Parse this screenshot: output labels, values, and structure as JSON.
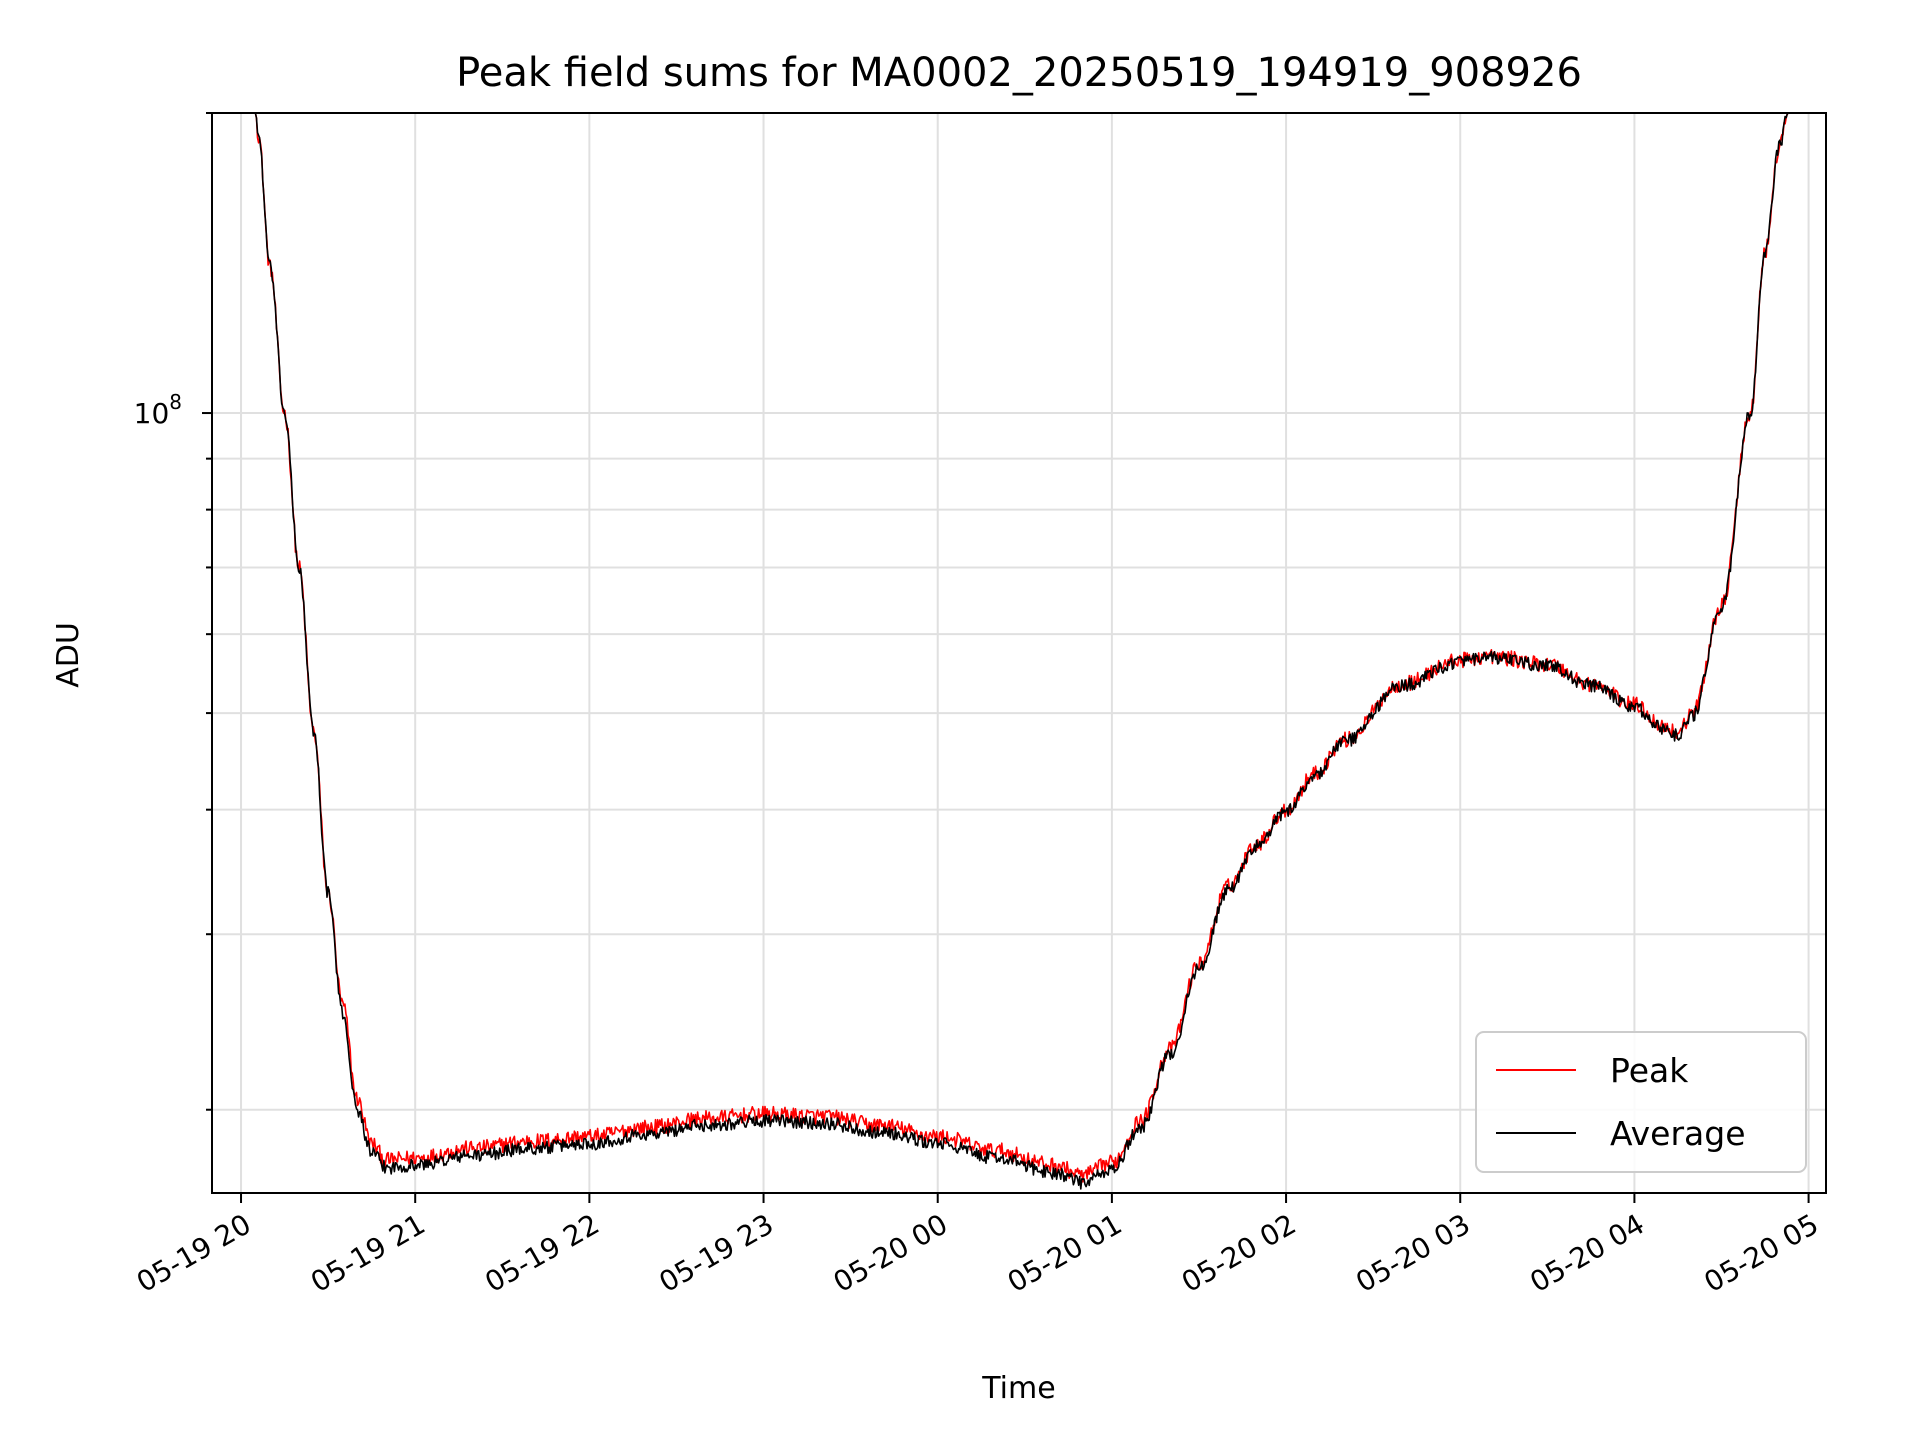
{
  "chart_data": {
    "type": "line",
    "title": "Peak field sums for MA0002_20250519_194919_908926",
    "xlabel": "Time",
    "ylabel": "ADU",
    "yscale": "log",
    "ylim": [
      16500000,
      200000000
    ],
    "xlim": [
      "2025-05-19 19:50",
      "2025-05-20 05:06"
    ],
    "xticks": [
      {
        "t": "2025-05-19 20:00",
        "label": "05-19 20"
      },
      {
        "t": "2025-05-19 21:00",
        "label": "05-19 21"
      },
      {
        "t": "2025-05-19 22:00",
        "label": "05-19 22"
      },
      {
        "t": "2025-05-19 23:00",
        "label": "05-19 23"
      },
      {
        "t": "2025-05-20 00:00",
        "label": "05-20 00"
      },
      {
        "t": "2025-05-20 01:00",
        "label": "05-20 01"
      },
      {
        "t": "2025-05-20 02:00",
        "label": "05-20 02"
      },
      {
        "t": "2025-05-20 03:00",
        "label": "05-20 03"
      },
      {
        "t": "2025-05-20 04:00",
        "label": "05-20 04"
      },
      {
        "t": "2025-05-20 05:00",
        "label": "05-20 05"
      }
    ],
    "yticks": [
      {
        "value": 100000000,
        "base": "10",
        "exp": "8"
      }
    ],
    "grid": true,
    "legend_position": "lower right",
    "series": [
      {
        "name": "Peak",
        "color": "#ff0000",
        "noise": 0.018,
        "points": [
          [
            "2025-05-19 19:49",
            200000000
          ],
          [
            "2025-05-19 20:05",
            200000000
          ],
          [
            "2025-05-19 20:06",
            190000000
          ],
          [
            "2025-05-19 20:10",
            140000000
          ],
          [
            "2025-05-19 20:15",
            100000000
          ],
          [
            "2025-05-19 20:20",
            70000000
          ],
          [
            "2025-05-19 20:25",
            48000000
          ],
          [
            "2025-05-19 20:30",
            33000000
          ],
          [
            "2025-05-19 20:35",
            25500000
          ],
          [
            "2025-05-19 20:40",
            20500000
          ],
          [
            "2025-05-19 20:45",
            18500000
          ],
          [
            "2025-05-19 20:50",
            17800000
          ],
          [
            "2025-05-19 21:00",
            17900000
          ],
          [
            "2025-05-19 21:20",
            18300000
          ],
          [
            "2025-05-19 21:40",
            18600000
          ],
          [
            "2025-05-19 22:00",
            18800000
          ],
          [
            "2025-05-19 22:20",
            19200000
          ],
          [
            "2025-05-19 22:40",
            19600000
          ],
          [
            "2025-05-19 23:00",
            19800000
          ],
          [
            "2025-05-19 23:20",
            19700000
          ],
          [
            "2025-05-19 23:40",
            19300000
          ],
          [
            "2025-05-20 00:00",
            18800000
          ],
          [
            "2025-05-20 00:20",
            18200000
          ],
          [
            "2025-05-20 00:40",
            17600000
          ],
          [
            "2025-05-20 00:50",
            17200000
          ],
          [
            "2025-05-20 01:00",
            17700000
          ],
          [
            "2025-05-20 01:10",
            19500000
          ],
          [
            "2025-05-20 01:20",
            23000000
          ],
          [
            "2025-05-20 01:30",
            28000000
          ],
          [
            "2025-05-20 01:40",
            33500000
          ],
          [
            "2025-05-20 01:50",
            37000000
          ],
          [
            "2025-05-20 02:00",
            40000000
          ],
          [
            "2025-05-20 02:10",
            43500000
          ],
          [
            "2025-05-20 02:20",
            47000000
          ],
          [
            "2025-05-20 02:40",
            53500000
          ],
          [
            "2025-05-20 03:00",
            56500000
          ],
          [
            "2025-05-20 03:10",
            57000000
          ],
          [
            "2025-05-20 03:30",
            56000000
          ],
          [
            "2025-05-20 03:45",
            53500000
          ],
          [
            "2025-05-20 04:00",
            51000000
          ],
          [
            "2025-05-20 04:10",
            48500000
          ],
          [
            "2025-05-20 04:15",
            47800000
          ],
          [
            "2025-05-20 04:20",
            50000000
          ],
          [
            "2025-05-20 04:30",
            64000000
          ],
          [
            "2025-05-20 04:40",
            100000000
          ],
          [
            "2025-05-20 04:45",
            145000000
          ],
          [
            "2025-05-20 04:50",
            185000000
          ],
          [
            "2025-05-20 04:53",
            200000000
          ]
        ]
      },
      {
        "name": "Average",
        "color": "#000000",
        "noise": 0.015,
        "points": [
          [
            "2025-05-19 19:49",
            200000000
          ],
          [
            "2025-05-19 20:05",
            200000000
          ],
          [
            "2025-05-19 20:06",
            190000000
          ],
          [
            "2025-05-19 20:10",
            140000000
          ],
          [
            "2025-05-19 20:15",
            100000000
          ],
          [
            "2025-05-19 20:20",
            70000000
          ],
          [
            "2025-05-19 20:25",
            48000000
          ],
          [
            "2025-05-19 20:30",
            33000000
          ],
          [
            "2025-05-19 20:35",
            25000000
          ],
          [
            "2025-05-19 20:40",
            20000000
          ],
          [
            "2025-05-19 20:45",
            18100000
          ],
          [
            "2025-05-19 20:50",
            17500000
          ],
          [
            "2025-05-19 21:00",
            17600000
          ],
          [
            "2025-05-19 21:20",
            18000000
          ],
          [
            "2025-05-19 21:40",
            18300000
          ],
          [
            "2025-05-19 22:00",
            18500000
          ],
          [
            "2025-05-19 22:20",
            18900000
          ],
          [
            "2025-05-19 22:40",
            19300000
          ],
          [
            "2025-05-19 23:00",
            19500000
          ],
          [
            "2025-05-19 23:20",
            19400000
          ],
          [
            "2025-05-19 23:40",
            19000000
          ],
          [
            "2025-05-20 00:00",
            18500000
          ],
          [
            "2025-05-20 00:20",
            17900000
          ],
          [
            "2025-05-20 00:40",
            17300000
          ],
          [
            "2025-05-20 00:50",
            16900000
          ],
          [
            "2025-05-20 01:00",
            17400000
          ],
          [
            "2025-05-20 01:10",
            19200000
          ],
          [
            "2025-05-20 01:20",
            22700000
          ],
          [
            "2025-05-20 01:30",
            27700000
          ],
          [
            "2025-05-20 01:40",
            33200000
          ],
          [
            "2025-05-20 01:50",
            36800000
          ],
          [
            "2025-05-20 02:00",
            39800000
          ],
          [
            "2025-05-20 02:10",
            43300000
          ],
          [
            "2025-05-20 02:20",
            46800000
          ],
          [
            "2025-05-20 02:40",
            53300000
          ],
          [
            "2025-05-20 03:00",
            56300000
          ],
          [
            "2025-05-20 03:10",
            56800000
          ],
          [
            "2025-05-20 03:30",
            55800000
          ],
          [
            "2025-05-20 03:45",
            53300000
          ],
          [
            "2025-05-20 04:00",
            50700000
          ],
          [
            "2025-05-20 04:10",
            48200000
          ],
          [
            "2025-05-20 04:15",
            47500000
          ],
          [
            "2025-05-20 04:20",
            49700000
          ],
          [
            "2025-05-20 04:30",
            63700000
          ],
          [
            "2025-05-20 04:40",
            100000000
          ],
          [
            "2025-05-20 04:45",
            145000000
          ],
          [
            "2025-05-20 04:50",
            185000000
          ],
          [
            "2025-05-20 04:53",
            200000000
          ]
        ]
      }
    ]
  }
}
